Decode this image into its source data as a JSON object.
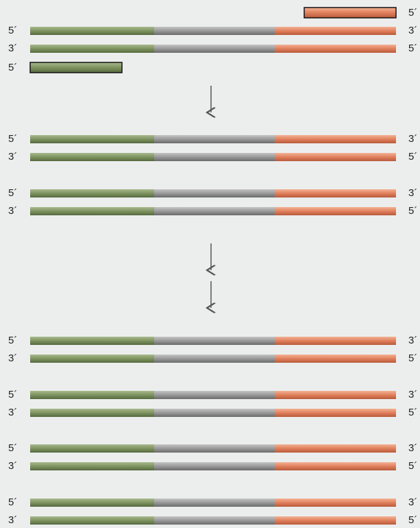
{
  "primers": [
    {
      "label": "5´"
    },
    {
      "label": "5´"
    }
  ],
  "duplexes": [
    {
      "top_left": "5´",
      "top_right": "3´",
      "bottom_left": "3´",
      "bottom_right": "5´"
    },
    {
      "top_left": "5´",
      "top_right": "3´",
      "bottom_left": "3´",
      "bottom_right": "5´"
    },
    {
      "top_left": "5´",
      "top_right": "3´",
      "bottom_left": "3´",
      "bottom_right": "5´"
    },
    {
      "top_left": "5´",
      "top_right": "3´",
      "bottom_left": "3´",
      "bottom_right": "5´"
    },
    {
      "top_left": "5´",
      "top_right": "3´",
      "bottom_left": "3´",
      "bottom_right": "5´"
    },
    {
      "top_left": "5´",
      "top_right": "3´",
      "bottom_left": "3´",
      "bottom_right": "5´"
    },
    {
      "top_left": "5´",
      "top_right": "3´",
      "bottom_left": "3´",
      "bottom_right": "5´"
    }
  ]
}
